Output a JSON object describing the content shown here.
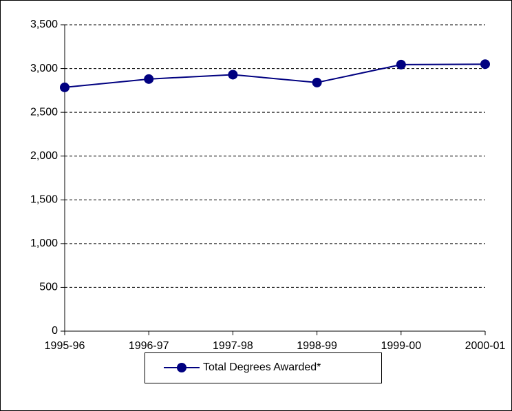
{
  "chart_data": {
    "type": "line",
    "categories": [
      "1995-96",
      "1996-97",
      "1997-98",
      "1998-99",
      "1999-00",
      "2000-01"
    ],
    "series": [
      {
        "name": "Total Degrees Awarded*",
        "color": "#000080",
        "values": [
          2785,
          2880,
          2930,
          2840,
          3045,
          3050
        ]
      }
    ],
    "ylim": [
      0,
      3500
    ],
    "yticks": [
      0,
      500,
      {
        "value": 1000,
        "label": "1,000"
      },
      {
        "value": 1500,
        "label": "1,500"
      },
      {
        "value": 2000,
        "label": "2,000"
      },
      {
        "value": 2500,
        "label": "2,500"
      },
      {
        "value": 3000,
        "label": "3,000"
      },
      {
        "value": 3500,
        "label": "3,500"
      }
    ],
    "grid": true,
    "legend": "bottom"
  }
}
